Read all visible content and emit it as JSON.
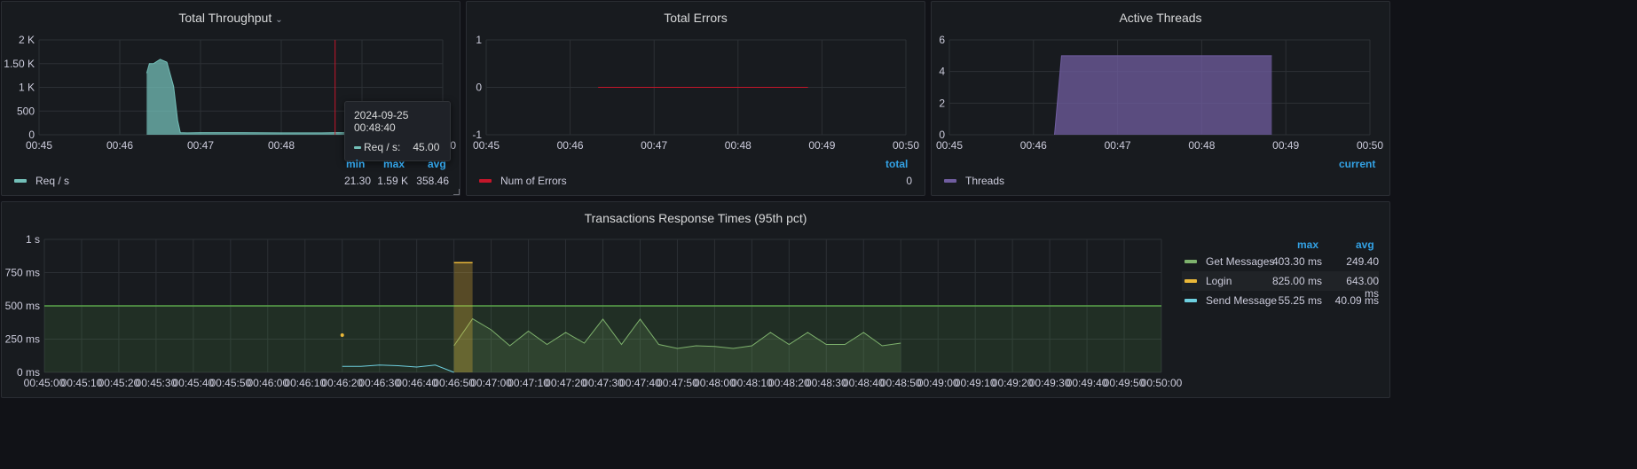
{
  "colors": {
    "throughput": "#73bfb8",
    "errors": "#c4162a",
    "threads": "#705da0",
    "get_messages": "#7eb26d",
    "login": "#eab839",
    "send_message": "#6ed0e0",
    "threshold": "#5aa64b",
    "grid": "#2c3035",
    "legend_head": "#33a2e5"
  },
  "throughput": {
    "title": "Total Throughput",
    "chevron": "⌄",
    "tooltip": {
      "time": "2024-09-25 00:48:40",
      "series": "Req / s:",
      "value": "45.00"
    },
    "legend": {
      "headers": [
        "min",
        "max",
        "avg"
      ],
      "series": "Req / s",
      "values": [
        "21.30",
        "1.59 K",
        "358.46"
      ]
    }
  },
  "errors": {
    "title": "Total Errors",
    "legend": {
      "headers": [
        "total"
      ],
      "series": "Num of Errors",
      "values": [
        "0"
      ]
    }
  },
  "threads": {
    "title": "Active Threads",
    "legend": {
      "headers": [
        "current"
      ],
      "series": "Threads",
      "values": []
    }
  },
  "response": {
    "title": "Transactions Response Times (95th pct)",
    "legend": {
      "headers": [
        "max",
        "avg"
      ],
      "rows": [
        {
          "name": "Get Messages",
          "max": "403.30 ms",
          "avg": "249.40 ms"
        },
        {
          "name": "Login",
          "max": "825.00 ms",
          "avg": "643.00 ms"
        },
        {
          "name": "Send Message",
          "max": "55.25 ms",
          "avg": "40.09 ms"
        }
      ]
    }
  },
  "chart_data": [
    {
      "type": "area",
      "title": "Total Throughput",
      "x_unit": "time",
      "xlim": [
        "00:45",
        "00:50"
      ],
      "ylim": [
        0,
        2000
      ],
      "y_ticks": [
        "0",
        "500",
        "1 K",
        "1.50 K",
        "2 K"
      ],
      "x_ticks": [
        "00:45",
        "00:46",
        "00:47",
        "00:48",
        "00:49",
        "00:50"
      ],
      "grid": true,
      "series": [
        {
          "name": "Req / s",
          "x": [
            "00:46:20",
            "00:46:22",
            "00:46:25",
            "00:46:30",
            "00:46:35",
            "00:46:40",
            "00:46:43",
            "00:46:45",
            "00:46:50",
            "00:47:00",
            "00:47:30",
            "00:48:00",
            "00:48:30",
            "00:48:40",
            "00:48:50"
          ],
          "y": [
            1300,
            1500,
            1500,
            1590,
            1530,
            1020,
            300,
            45,
            40,
            45,
            45,
            40,
            40,
            45,
            45
          ]
        }
      ]
    },
    {
      "type": "line",
      "title": "Total Errors",
      "x_unit": "time",
      "xlim": [
        "00:45",
        "00:50"
      ],
      "ylim": [
        -1,
        1
      ],
      "y_ticks": [
        "-1",
        "0",
        "1"
      ],
      "x_ticks": [
        "00:45",
        "00:46",
        "00:47",
        "00:48",
        "00:49",
        "00:50"
      ],
      "grid": true,
      "series": [
        {
          "name": "Num of Errors",
          "x": [
            "00:46:20",
            "00:48:50"
          ],
          "y": [
            0,
            0
          ]
        }
      ]
    },
    {
      "type": "area",
      "title": "Active Threads",
      "x_unit": "time",
      "xlim": [
        "00:45",
        "00:50"
      ],
      "ylim": [
        0,
        6
      ],
      "y_ticks": [
        "0",
        "2",
        "4",
        "6"
      ],
      "x_ticks": [
        "00:45",
        "00:46",
        "00:47",
        "00:48",
        "00:49",
        "00:50"
      ],
      "grid": true,
      "series": [
        {
          "name": "Threads",
          "x": [
            "00:46:15",
            "00:46:20",
            "00:48:50"
          ],
          "y": [
            0,
            5,
            5
          ]
        }
      ]
    },
    {
      "type": "line",
      "title": "Transactions Response Times (95th pct)",
      "x_unit": "time",
      "xlim": [
        "00:45:00",
        "00:50:00"
      ],
      "ylim": [
        0,
        1000
      ],
      "y_ticks": [
        "0 ms",
        "250 ms",
        "500 ms",
        "750 ms",
        "1 s"
      ],
      "x_ticks": [
        "00:45:00",
        "00:45:10",
        "00:45:20",
        "00:45:30",
        "00:45:40",
        "00:45:50",
        "00:46:00",
        "00:46:10",
        "00:46:20",
        "00:46:30",
        "00:46:40",
        "00:46:50",
        "00:47:00",
        "00:47:10",
        "00:47:20",
        "00:47:30",
        "00:47:40",
        "00:47:50",
        "00:48:00",
        "00:48:10",
        "00:48:20",
        "00:48:30",
        "00:48:40",
        "00:48:50",
        "00:49:00",
        "00:49:10",
        "00:49:20",
        "00:49:30",
        "00:49:40",
        "00:49:50",
        "00:50:00"
      ],
      "threshold": 500,
      "grid": true,
      "series": [
        {
          "name": "Get Messages",
          "x": [
            "00:46:50",
            "00:46:55",
            "00:47:00",
            "00:47:05",
            "00:47:10",
            "00:47:15",
            "00:47:20",
            "00:47:25",
            "00:47:30",
            "00:47:35",
            "00:47:40",
            "00:47:45",
            "00:47:50",
            "00:47:55",
            "00:48:00",
            "00:48:05",
            "00:48:10",
            "00:48:15",
            "00:48:20",
            "00:48:25",
            "00:48:30",
            "00:48:35",
            "00:48:40",
            "00:48:45",
            "00:48:50"
          ],
          "y": [
            200,
            403,
            320,
            200,
            310,
            210,
            300,
            220,
            400,
            210,
            400,
            210,
            180,
            200,
            195,
            180,
            200,
            300,
            210,
            300,
            210,
            210,
            300,
            200,
            220
          ]
        },
        {
          "name": "Login",
          "x": [
            "00:46:20",
            "00:46:50",
            "00:46:55"
          ],
          "y": [
            280,
            825,
            825
          ]
        },
        {
          "name": "Send Message",
          "x": [
            "00:46:20",
            "00:46:25",
            "00:46:30",
            "00:46:35",
            "00:46:40",
            "00:46:45",
            "00:46:50"
          ],
          "y": [
            45,
            45,
            55,
            50,
            40,
            55,
            0
          ]
        }
      ]
    }
  ]
}
